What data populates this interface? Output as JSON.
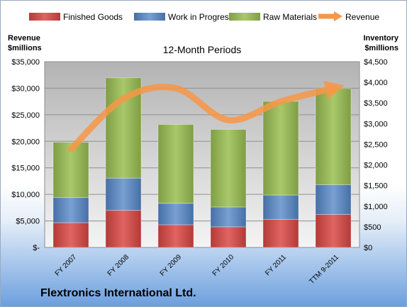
{
  "company_name": "Flextronics International Ltd.",
  "chart_data": {
    "type": "bar",
    "stacked": true,
    "title": "12-Month Periods",
    "ylabel_left": [
      "Revenue",
      "$millions"
    ],
    "ylabel_right": [
      "Inventory",
      "$millions"
    ],
    "categories": [
      "FY 2007",
      "FY 2008",
      "FY 2009",
      "FY 2010",
      "FY 2011",
      "TTM 9-2011"
    ],
    "left_axis": {
      "min": 0,
      "max": 35000,
      "ticks": [
        "$-",
        "$5,000",
        "$10,000",
        "$15,000",
        "$20,000",
        "$25,000",
        "$30,000",
        "$35,000"
      ]
    },
    "right_axis": {
      "min": 0,
      "max": 4500,
      "ticks": [
        "$0",
        "$500",
        "$1,000",
        "$1,500",
        "$2,000",
        "$2,500",
        "$3,000",
        "$3,500",
        "$4,000",
        "$4,500"
      ]
    },
    "series": [
      {
        "name": "Finished Goods",
        "axis": "right",
        "color": "#c0504d",
        "values": [
          600,
          900,
          550,
          500,
          680,
          800
        ]
      },
      {
        "name": "Work in Progress",
        "axis": "right",
        "color": "#4f81bd",
        "values": [
          610,
          780,
          520,
          480,
          590,
          720
        ]
      },
      {
        "name": "Raw Materials",
        "axis": "right",
        "color": "#9bbb59",
        "values": [
          1340,
          2430,
          1910,
          1880,
          2270,
          2330
        ]
      },
      {
        "name": "Revenue",
        "axis": "left",
        "type": "line",
        "color": "#f79646",
        "values": [
          18500,
          28000,
          30000,
          24000,
          27500,
          30000
        ]
      }
    ],
    "legend_position": "top",
    "grid": true
  }
}
